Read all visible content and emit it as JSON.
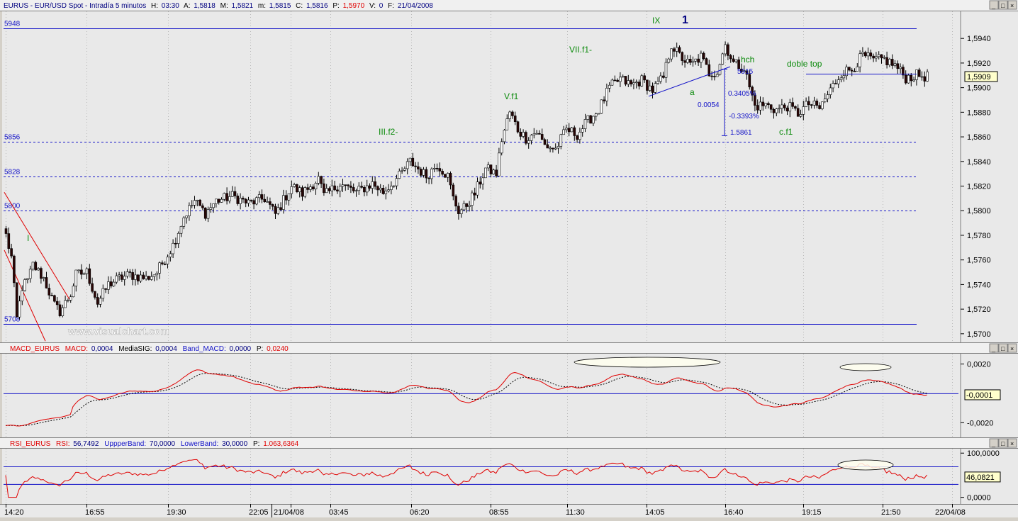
{
  "header": {
    "symbol": "EURUS",
    "desc": "EUR/USD Spot",
    "interval": "Intradía 5 minutos",
    "h_label": "H:",
    "h_val": "03:30",
    "a_label": "A:",
    "a_val": "1,5818",
    "m_label": "M:",
    "m_val": "1,5821",
    "mn_label": "m:",
    "mn_val": "1,5815",
    "c_label": "C:",
    "c_val": "1,5816",
    "p_label": "P:",
    "p_val": "1,5970",
    "v_label": "V:",
    "v_val": "0",
    "f_label": "F:",
    "f_val": "21/04/2008"
  },
  "window_icons": [
    "minimize-icon",
    "maximize-icon",
    "close-icon"
  ],
  "watermark": "www.visualchart.com",
  "colors": {
    "background": "#e9e9e9",
    "candle_up": "#ffffff",
    "candle_down": "#2a0606",
    "level_line": "#1414c8",
    "annotation_green": "#0b8a0b",
    "annotation_blue": "#1414c8",
    "macd_line": "#e00000",
    "signal_line": "#000000",
    "rsi_line": "#e00000",
    "trend_line": "#e00000",
    "label_highlight": "#ffffcc"
  },
  "chart_data": [
    {
      "type": "candlestick",
      "panel": "price",
      "y_axis_labels": [
        "1,5940",
        "1,5920",
        "1,5900",
        "1,5880",
        "1,5860",
        "1,5840",
        "1,5820",
        "1,5800",
        "1,5780",
        "1,5760",
        "1,5740",
        "1,5720",
        "1,5700"
      ],
      "ylim": [
        1.5693,
        1.5962
      ],
      "last_value_label": "1,5909",
      "last_value": 1.5909,
      "anchors": [
        [
          0,
          1.578
        ],
        [
          2,
          1.5762
        ],
        [
          4,
          1.5712
        ],
        [
          6,
          1.5738
        ],
        [
          8,
          1.5743
        ],
        [
          10,
          1.5756
        ],
        [
          14,
          1.5745
        ],
        [
          18,
          1.5723
        ],
        [
          20,
          1.5718
        ],
        [
          24,
          1.5732
        ],
        [
          26,
          1.5748
        ],
        [
          30,
          1.575
        ],
        [
          34,
          1.5725
        ],
        [
          38,
          1.574
        ],
        [
          42,
          1.5745
        ],
        [
          46,
          1.5748
        ],
        [
          52,
          1.5745
        ],
        [
          56,
          1.575
        ],
        [
          62,
          1.5772
        ],
        [
          66,
          1.5795
        ],
        [
          70,
          1.5808
        ],
        [
          74,
          1.5798
        ],
        [
          78,
          1.5808
        ],
        [
          84,
          1.5812
        ],
        [
          90,
          1.5806
        ],
        [
          96,
          1.581
        ],
        [
          100,
          1.5797
        ],
        [
          106,
          1.582
        ],
        [
          110,
          1.5814
        ],
        [
          116,
          1.5826
        ],
        [
          118,
          1.5812
        ],
        [
          124,
          1.5822
        ],
        [
          130,
          1.5815
        ],
        [
          136,
          1.5822
        ],
        [
          140,
          1.5815
        ],
        [
          146,
          1.5828
        ],
        [
          150,
          1.584
        ],
        [
          152,
          1.5836
        ],
        [
          156,
          1.5828
        ],
        [
          160,
          1.5838
        ],
        [
          164,
          1.5828
        ],
        [
          166,
          1.581
        ],
        [
          168,
          1.58
        ],
        [
          170,
          1.5802
        ],
        [
          174,
          1.5814
        ],
        [
          178,
          1.5834
        ],
        [
          182,
          1.583
        ],
        [
          184,
          1.5858
        ],
        [
          187,
          1.588
        ],
        [
          190,
          1.5866
        ],
        [
          193,
          1.5859
        ],
        [
          197,
          1.5864
        ],
        [
          200,
          1.5853
        ],
        [
          204,
          1.585
        ],
        [
          208,
          1.5866
        ],
        [
          212,
          1.5862
        ],
        [
          216,
          1.5873
        ],
        [
          220,
          1.5882
        ],
        [
          224,
          1.59
        ],
        [
          228,
          1.5907
        ],
        [
          232,
          1.5902
        ],
        [
          236,
          1.5906
        ],
        [
          240,
          1.5898
        ],
        [
          244,
          1.5908
        ],
        [
          247,
          1.5935
        ],
        [
          250,
          1.5926
        ],
        [
          254,
          1.5918
        ],
        [
          258,
          1.5925
        ],
        [
          261,
          1.5912
        ],
        [
          264,
          1.5913
        ],
        [
          267,
          1.5935
        ],
        [
          270,
          1.592
        ],
        [
          274,
          1.5916
        ],
        [
          278,
          1.5885
        ],
        [
          282,
          1.5886
        ],
        [
          286,
          1.5882
        ],
        [
          290,
          1.5885
        ],
        [
          294,
          1.5879
        ],
        [
          298,
          1.5887
        ],
        [
          302,
          1.5883
        ],
        [
          306,
          1.5898
        ],
        [
          310,
          1.5912
        ],
        [
          314,
          1.5915
        ],
        [
          318,
          1.5926
        ],
        [
          322,
          1.5922
        ],
        [
          326,
          1.5923
        ],
        [
          330,
          1.5918
        ],
        [
          334,
          1.5908
        ],
        [
          338,
          1.591
        ],
        [
          342,
          1.5909
        ]
      ],
      "overlay_lines": [
        {
          "label": "5948",
          "value": 1.5948,
          "style": "solid"
        },
        {
          "label": "5856",
          "value": 1.5856,
          "style": "dashed"
        },
        {
          "label": "5828",
          "value": 1.5828,
          "style": "dashed"
        },
        {
          "label": "5800",
          "value": 1.58,
          "style": "dashed"
        },
        {
          "label": "5708",
          "value": 1.5708,
          "style": "solid"
        }
      ],
      "annotations": {
        "wave_I": "I",
        "wave_III": "III.f2-",
        "wave_V": "V.f1",
        "wave_VII": "VII.f1-",
        "wave_IX": "IX",
        "wave_1": "1",
        "hch": "hch",
        "a": "a",
        "doble_top": "doble top",
        "cf1": "c.f1",
        "v5915": "5915",
        "pct_up": "0.3405%",
        "diff": "0.0054",
        "pct_down": "-0.3393%",
        "v5861": "1.5861"
      }
    },
    {
      "type": "line",
      "panel": "macd",
      "title": "MACD_EURUS",
      "series": [
        {
          "name": "MACD",
          "label": "MACD:",
          "value_text": "0,0004"
        },
        {
          "name": "MediaSIG",
          "label": "MediaSIG:",
          "value_text": "0,0004"
        },
        {
          "name": "Band_MACD",
          "label": "Band_MACD:",
          "value_text": "0,0000"
        },
        {
          "name": "P",
          "label": "P:",
          "value_text": "0,0240"
        }
      ],
      "y_axis_labels": [
        "0,0020",
        "-0,0020"
      ],
      "last_value_label": "-0,0001"
    },
    {
      "type": "line",
      "panel": "rsi",
      "title": "RSI_EURUS",
      "series": [
        {
          "name": "RSI",
          "label": "RSI:",
          "value_text": "56,7492"
        },
        {
          "name": "UppperBand",
          "label": "UppperBand:",
          "value_text": "70,0000"
        },
        {
          "name": "LowerBand",
          "label": "LowerBand:",
          "value_text": "30,0000"
        },
        {
          "name": "P",
          "label": "P:",
          "value_text": "1.063,6364"
        }
      ],
      "y_axis_labels": [
        "100,0000",
        "0,0000"
      ],
      "last_value_label": "46,0821",
      "ylim": [
        0,
        100
      ],
      "upper_band": 70,
      "lower_band": 30
    }
  ],
  "x_axis": {
    "labels": [
      "14:20",
      "16:55",
      "19:30",
      "22:05",
      "21/04/08",
      "03:45",
      "06:20",
      "08:55",
      "11:30",
      "14:05",
      "16:40",
      "19:15",
      "21:50",
      "22/04/08"
    ]
  }
}
